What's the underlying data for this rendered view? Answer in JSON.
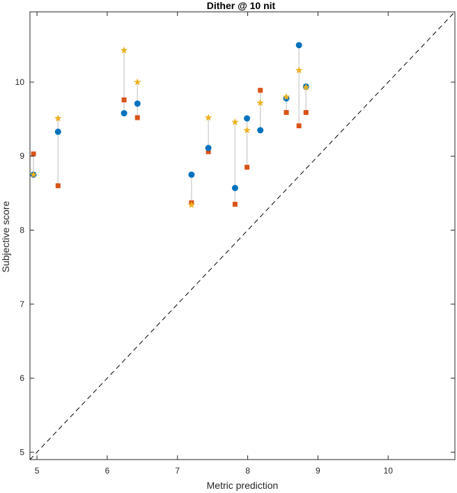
{
  "chart_data": {
    "type": "scatter",
    "title": "Dither @ 10 nit",
    "xlabel": "Metric prediction",
    "ylabel": "Subjective score",
    "xlim": [
      4.9,
      10.95
    ],
    "ylim": [
      4.9,
      10.95
    ],
    "xticks": [
      5,
      6,
      7,
      8,
      9,
      10
    ],
    "yticks": [
      5,
      6,
      7,
      8,
      9,
      10
    ],
    "grid": false,
    "identity_line": true,
    "colors": {
      "circle": "#0072BD",
      "square": "#D95319",
      "star": "#EDB120",
      "connector": "#c8c8c8",
      "axis": "#262626"
    },
    "points": [
      {
        "x": 4.95,
        "circle": 8.75,
        "square": 9.03,
        "star": 8.75
      },
      {
        "x": 5.3,
        "circle": 9.33,
        "square": 8.6,
        "star": 9.51
      },
      {
        "x": 6.24,
        "circle": 9.58,
        "square": 9.76,
        "star": 10.43
      },
      {
        "x": 6.43,
        "circle": 9.71,
        "square": 9.52,
        "star": 10.0
      },
      {
        "x": 7.2,
        "circle": 8.75,
        "square": 8.37,
        "star": 8.34
      },
      {
        "x": 7.44,
        "circle": 9.11,
        "square": 9.06,
        "star": 9.52
      },
      {
        "x": 7.82,
        "circle": 8.57,
        "square": 8.35,
        "star": 9.46
      },
      {
        "x": 7.99,
        "circle": 9.51,
        "square": 8.85,
        "star": 9.35
      },
      {
        "x": 8.18,
        "circle": 9.35,
        "square": 9.89,
        "star": 9.72
      },
      {
        "x": 8.55,
        "circle": 9.78,
        "square": 9.59,
        "star": 9.8
      },
      {
        "x": 8.73,
        "circle": 10.5,
        "square": 9.41,
        "star": 10.16
      },
      {
        "x": 8.83,
        "circle": 9.94,
        "square": 9.59,
        "star": 9.93
      }
    ]
  }
}
